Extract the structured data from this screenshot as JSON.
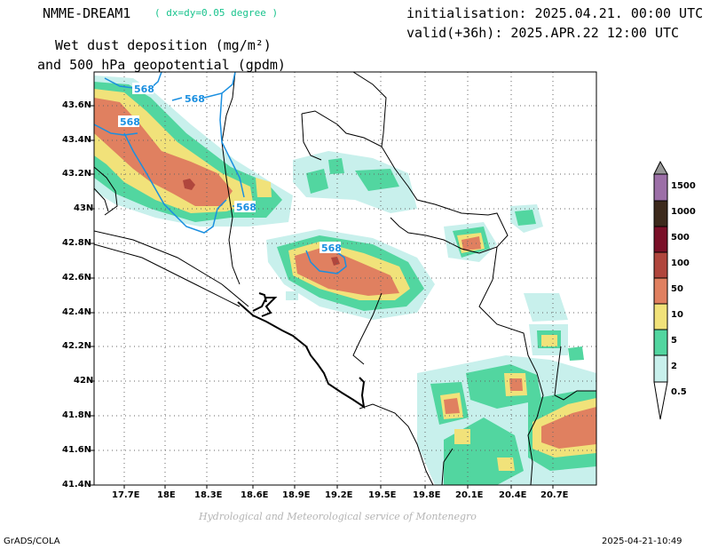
{
  "header": {
    "model": "NMME-DREAM1",
    "resolution": "( dx=dy=0.05 degree )",
    "init": "initialisation: 2025.04.21. 00:00 UTC",
    "valid": "valid(+36h): 2025.APR.22 12:00 UTC",
    "title_line1": "Wet dust deposition (mg/m²)",
    "title_line2": "and 500 hPa geopotential (gpdm)"
  },
  "axes": {
    "lat_labels": [
      "43.6N",
      "43.4N",
      "43.2N",
      "43N",
      "42.8N",
      "42.6N",
      "42.4N",
      "42.2N",
      "42N",
      "41.8N",
      "41.6N",
      "41.4N"
    ],
    "lon_labels": [
      "17.7E",
      "18E",
      "18.3E",
      "18.6E",
      "18.9E",
      "19.2E",
      "19.5E",
      "19.8E",
      "20.1E",
      "20.4E",
      "20.7E"
    ]
  },
  "contour_label": "568",
  "legend": {
    "labels": [
      "1500",
      "1000",
      "500",
      "100",
      "50",
      "10",
      "5",
      "2",
      "0.5"
    ],
    "colors": [
      "#9c6fa7",
      "#3d2a1c",
      "#7a1028",
      "#b0463d",
      "#e08060",
      "#f1e27a",
      "#52d6a0",
      "#c8f0ec"
    ]
  },
  "colors": {
    "c05": "#c8f0ec",
    "c2": "#52d6a0",
    "c5": "#f1e27a",
    "c10": "#e08060",
    "c50": "#b0463d",
    "contour": "#1a8fe0",
    "accent": "#19c38d"
  },
  "credit": "Hydrological and Meteorological service of Montenegro",
  "footer": {
    "left": "GrADS/COLA",
    "right": "2025-04-21-10:49"
  }
}
